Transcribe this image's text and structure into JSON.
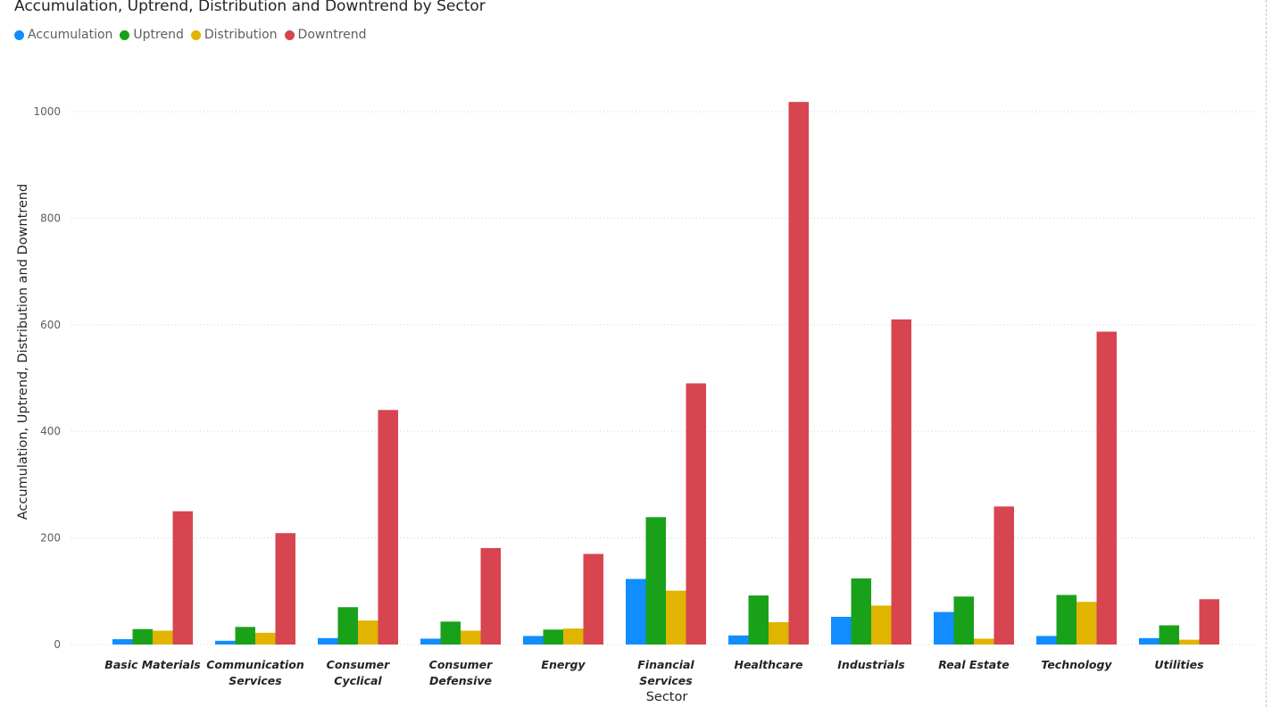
{
  "chart_data": {
    "type": "bar",
    "title": "Accumulation, Uptrend, Distribution and Downtrend by Sector",
    "xlabel": "Sector",
    "ylabel": "Accumulation, Uptrend, Distribution and Downtrend",
    "ylim": [
      0,
      1020
    ],
    "yticks": [
      0,
      200,
      400,
      600,
      800,
      1000
    ],
    "grid": true,
    "legend_position": "top-left",
    "categories": [
      [
        "Basic Materials"
      ],
      [
        "Communication",
        "Services"
      ],
      [
        "Consumer",
        "Cyclical"
      ],
      [
        "Consumer",
        "Defensive"
      ],
      [
        "Energy"
      ],
      [
        "Financial",
        "Services"
      ],
      [
        "Healthcare"
      ],
      [
        "Industrials"
      ],
      [
        "Real Estate"
      ],
      [
        "Technology"
      ],
      [
        "Utilities"
      ]
    ],
    "series": [
      {
        "name": "Accumulation",
        "color": "#118DFF",
        "values": [
          10,
          7,
          12,
          11,
          16,
          123,
          17,
          52,
          61,
          16,
          12
        ]
      },
      {
        "name": "Uptrend",
        "color": "#1AA11A",
        "values": [
          29,
          33,
          70,
          43,
          28,
          239,
          92,
          124,
          90,
          93,
          36
        ]
      },
      {
        "name": "Distribution",
        "color": "#E0B400",
        "values": [
          26,
          22,
          45,
          26,
          30,
          101,
          42,
          73,
          11,
          80,
          9
        ]
      },
      {
        "name": "Downtrend",
        "color": "#D64550",
        "values": [
          250,
          209,
          440,
          181,
          170,
          490,
          1018,
          610,
          259,
          587,
          85
        ]
      }
    ]
  }
}
